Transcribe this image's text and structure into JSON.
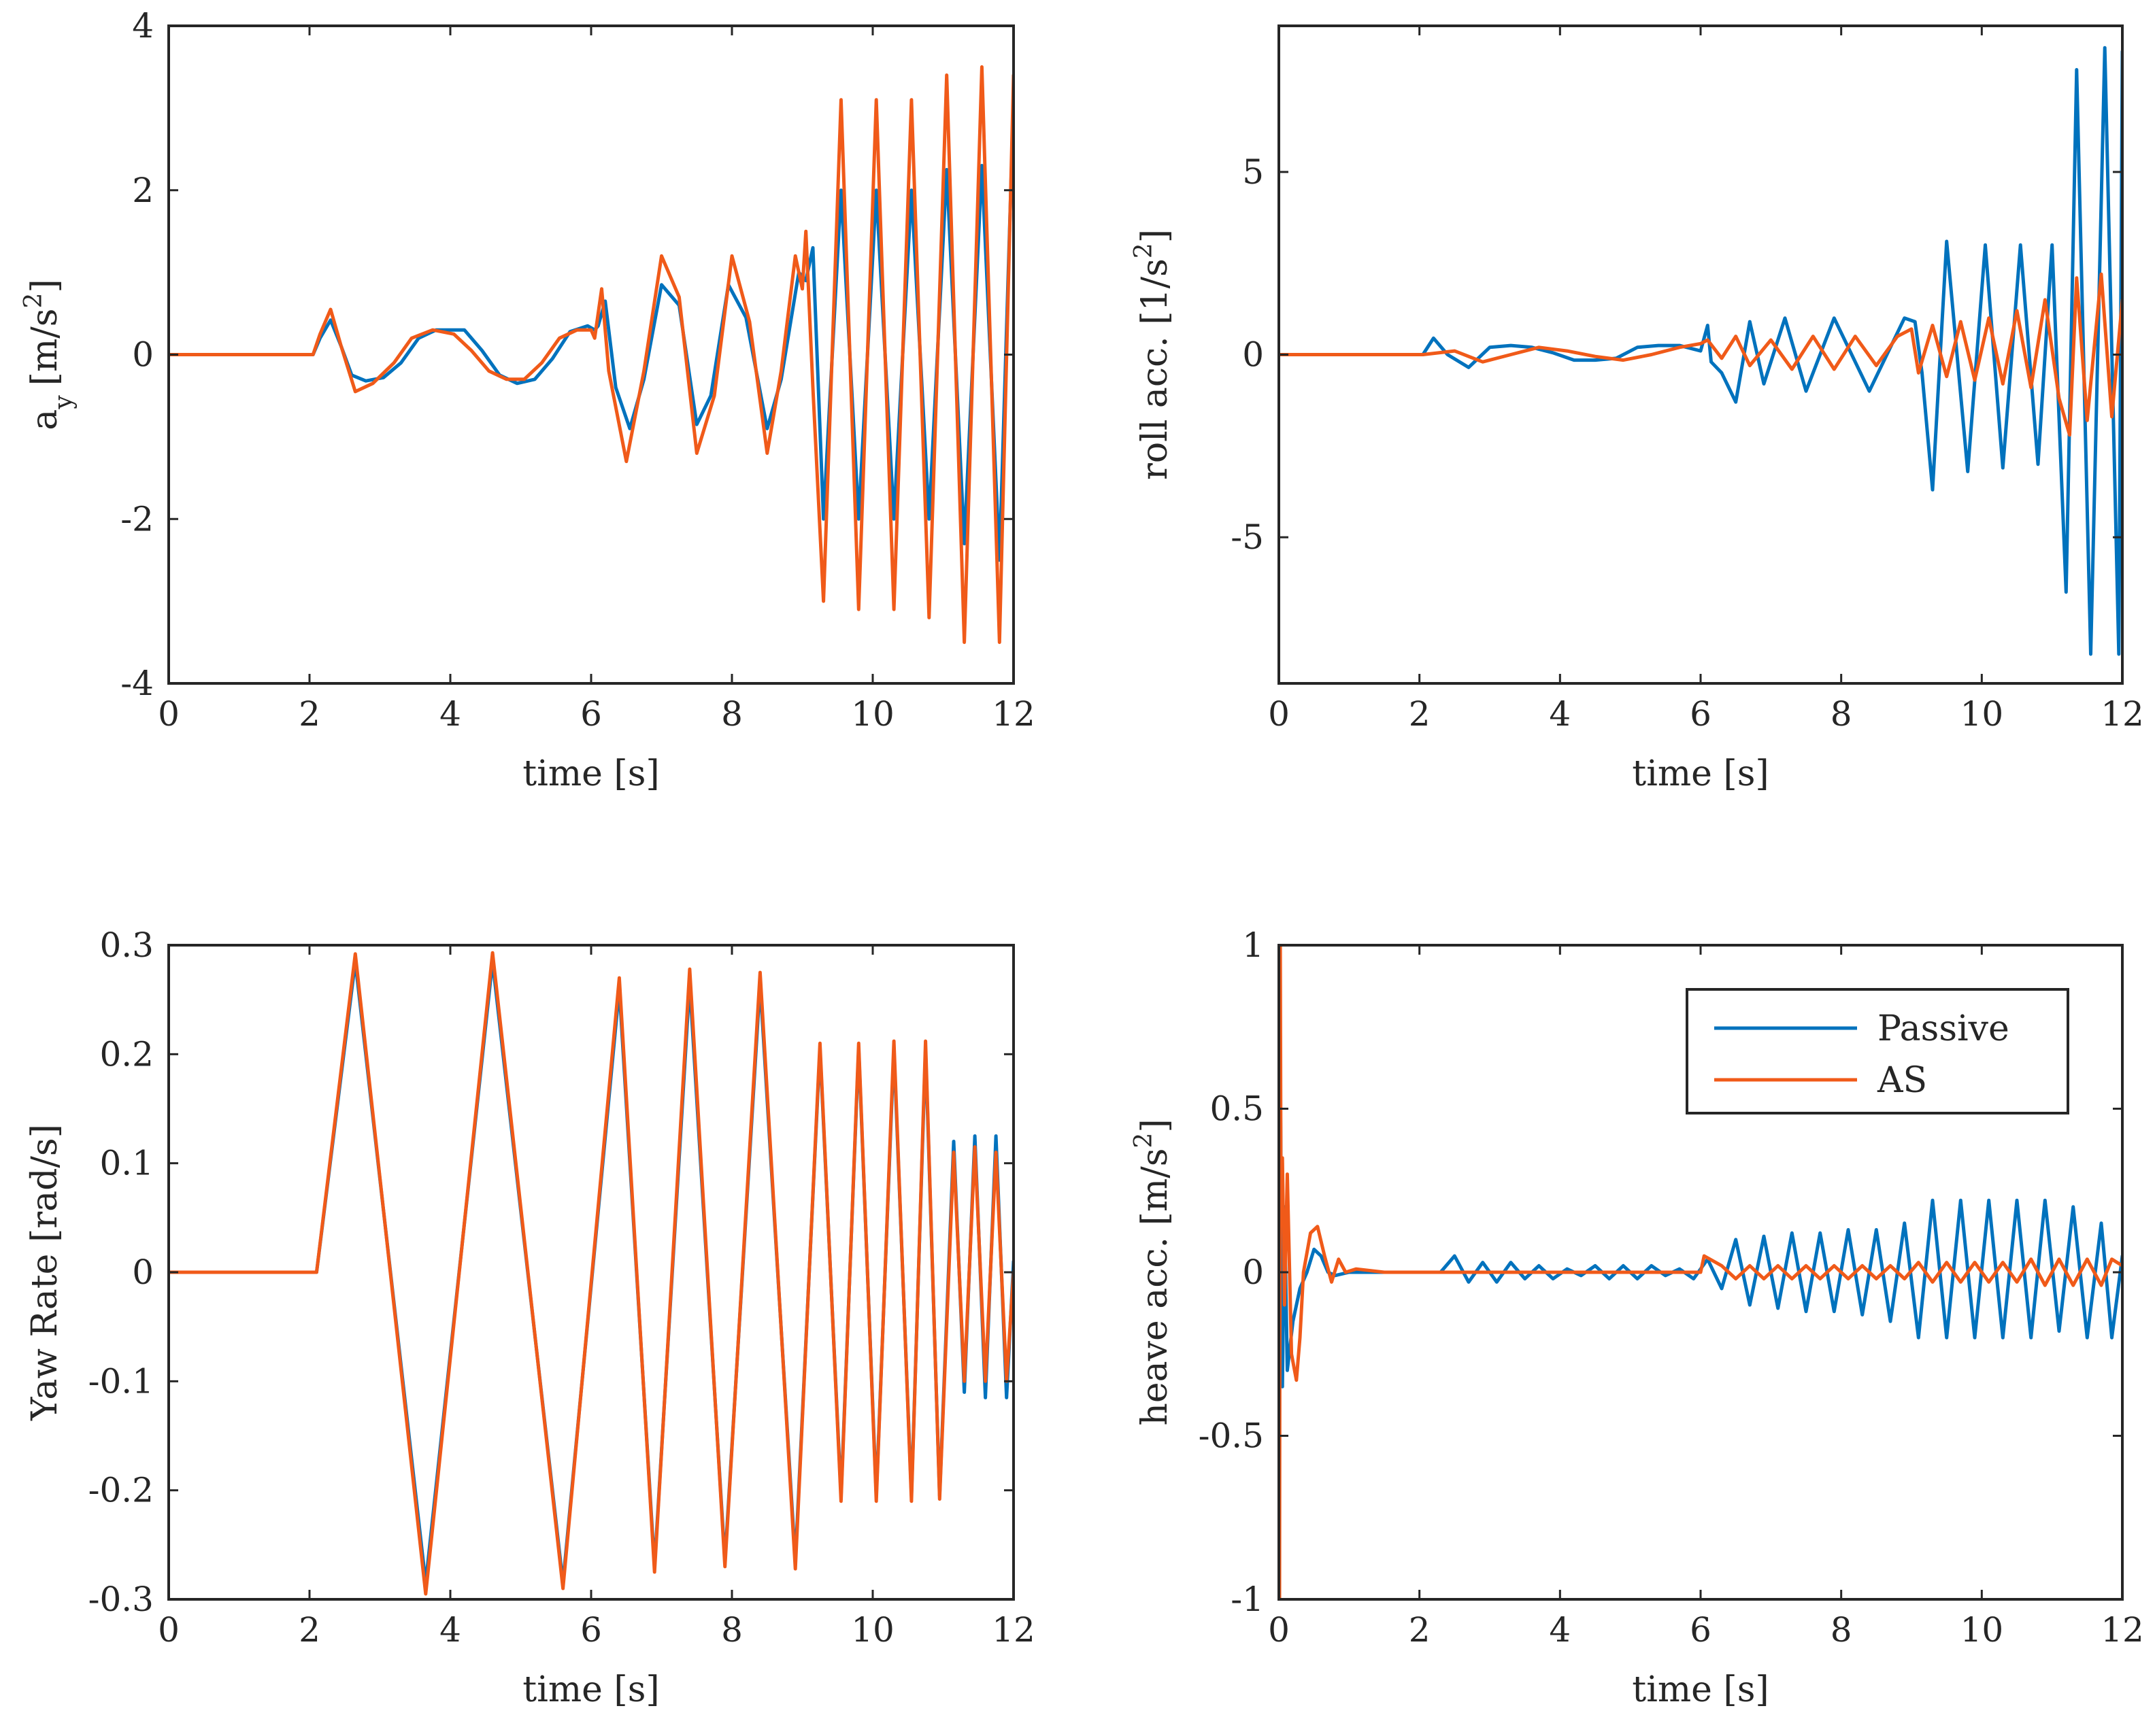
{
  "colors": {
    "passive": "#0072BD",
    "as": "#F05A19",
    "axis": "#262626"
  },
  "legend": {
    "placement": "top-right",
    "entries": [
      "Passive",
      "AS"
    ]
  },
  "chart_data": [
    {
      "type": "line",
      "xlabel": "time [s]",
      "ylabel": "a_y [m/s^2]",
      "ylabel_main": "a",
      "ylabel_sub": "y",
      "ylabel_tail": "[m/s",
      "ylabel_sup": "2",
      "ylabel_close": "]",
      "xlim": [
        0,
        12
      ],
      "ylim": [
        -4,
        4
      ],
      "xticks": [
        0,
        2,
        4,
        6,
        8,
        10,
        12
      ],
      "xtick_labels": [
        "0",
        "2",
        "4",
        "6",
        "8",
        "10",
        "12"
      ],
      "yticks": [
        -4,
        -2,
        0,
        2,
        4
      ],
      "ytick_labels": [
        "-4",
        "-2",
        "0",
        "2",
        "4"
      ],
      "series": [
        {
          "name": "Passive",
          "x": [
            0,
            2.05,
            2.15,
            2.3,
            2.45,
            2.6,
            2.8,
            3.05,
            3.3,
            3.55,
            3.8,
            4.05,
            4.2,
            4.45,
            4.7,
            4.95,
            5.2,
            5.45,
            5.7,
            5.95,
            6.05,
            6.1,
            6.2,
            6.35,
            6.55,
            6.75,
            7.0,
            7.25,
            7.5,
            7.7,
            7.95,
            8.2,
            8.5,
            8.7,
            8.95,
            9.05,
            9.15,
            9.3,
            9.55,
            9.8,
            10.05,
            10.3,
            10.55,
            10.8,
            11.05,
            11.3,
            11.55,
            11.8,
            12.0
          ],
          "y": [
            0,
            0,
            0.2,
            0.42,
            0.1,
            -0.25,
            -0.32,
            -0.28,
            -0.1,
            0.2,
            0.3,
            0.3,
            0.3,
            0.05,
            -0.25,
            -0.35,
            -0.3,
            -0.05,
            0.28,
            0.35,
            0.3,
            0.35,
            0.65,
            -0.4,
            -0.9,
            -0.3,
            0.85,
            0.6,
            -0.85,
            -0.5,
            0.85,
            0.45,
            -0.9,
            -0.3,
            1.0,
            0.9,
            1.3,
            -2.0,
            2.0,
            -2.0,
            2.0,
            -2.0,
            2.0,
            -2.0,
            2.25,
            -2.3,
            2.3,
            -2.5,
            3.1
          ]
        },
        {
          "name": "AS",
          "x": [
            0,
            2.05,
            2.15,
            2.3,
            2.45,
            2.65,
            2.9,
            3.2,
            3.45,
            3.75,
            4.05,
            4.3,
            4.55,
            4.8,
            5.05,
            5.3,
            5.55,
            5.8,
            6.0,
            6.05,
            6.15,
            6.25,
            6.5,
            6.75,
            7.0,
            7.25,
            7.5,
            7.75,
            8.0,
            8.25,
            8.5,
            8.7,
            8.9,
            9.0,
            9.05,
            9.15,
            9.3,
            9.55,
            9.8,
            10.05,
            10.3,
            10.55,
            10.8,
            11.05,
            11.3,
            11.55,
            11.8,
            12.0
          ],
          "y": [
            0,
            0,
            0.25,
            0.55,
            0.1,
            -0.45,
            -0.35,
            -0.1,
            0.2,
            0.3,
            0.25,
            0.05,
            -0.2,
            -0.3,
            -0.3,
            -0.1,
            0.2,
            0.3,
            0.3,
            0.2,
            0.8,
            -0.2,
            -1.3,
            -0.2,
            1.2,
            0.7,
            -1.2,
            -0.5,
            1.2,
            0.4,
            -1.2,
            -0.2,
            1.2,
            0.8,
            1.5,
            -0.4,
            -3.0,
            3.1,
            -3.1,
            3.1,
            -3.1,
            3.1,
            -3.2,
            3.4,
            -3.5,
            3.5,
            -3.5,
            3.4
          ]
        }
      ]
    },
    {
      "type": "line",
      "xlabel": "time [s]",
      "ylabel": "roll acc. [1/s^2]",
      "ylabel_main": "roll acc. [1/s",
      "ylabel_sup": "2",
      "ylabel_close": "]",
      "xlim": [
        0,
        12
      ],
      "ylim": [
        -9,
        9
      ],
      "xticks": [
        0,
        2,
        4,
        6,
        8,
        10,
        12
      ],
      "xtick_labels": [
        "0",
        "2",
        "4",
        "6",
        "8",
        "10",
        "12"
      ],
      "yticks": [
        -5,
        0,
        5
      ],
      "ytick_labels": [
        "-5",
        "0",
        "5"
      ],
      "series": [
        {
          "name": "Passive",
          "x": [
            0,
            2.05,
            2.2,
            2.4,
            2.7,
            3.0,
            3.3,
            3.6,
            3.9,
            4.2,
            4.5,
            4.8,
            5.1,
            5.4,
            5.7,
            6.0,
            6.1,
            6.15,
            6.3,
            6.5,
            6.7,
            6.9,
            7.2,
            7.5,
            7.9,
            8.4,
            8.9,
            9.05,
            9.15,
            9.3,
            9.5,
            9.8,
            10.05,
            10.3,
            10.55,
            10.8,
            11.0,
            11.2,
            11.35,
            11.55,
            11.75,
            11.95,
            12.0
          ],
          "y": [
            0,
            0,
            0.45,
            0.0,
            -0.35,
            0.2,
            0.25,
            0.2,
            0.05,
            -0.15,
            -0.15,
            -0.1,
            0.2,
            0.25,
            0.25,
            0.1,
            0.8,
            -0.2,
            -0.5,
            -1.3,
            0.9,
            -0.8,
            1.0,
            -1.0,
            1.0,
            -1.0,
            1.0,
            0.9,
            -0.5,
            -3.7,
            3.1,
            -3.2,
            3.0,
            -3.1,
            3.0,
            -3.0,
            3.0,
            -6.5,
            7.8,
            -8.2,
            8.4,
            -8.2,
            8.3
          ]
        },
        {
          "name": "AS",
          "x": [
            0,
            2.05,
            2.5,
            2.9,
            3.3,
            3.7,
            4.1,
            4.5,
            4.9,
            5.3,
            5.7,
            6.0,
            6.1,
            6.3,
            6.5,
            6.7,
            7.0,
            7.3,
            7.6,
            7.9,
            8.2,
            8.5,
            8.8,
            9.0,
            9.1,
            9.3,
            9.5,
            9.7,
            9.9,
            10.1,
            10.3,
            10.5,
            10.7,
            10.9,
            11.1,
            11.25,
            11.35,
            11.5,
            11.7,
            11.85,
            12.0
          ],
          "y": [
            0,
            0,
            0.1,
            -0.2,
            0.0,
            0.2,
            0.1,
            -0.05,
            -0.15,
            0.0,
            0.2,
            0.3,
            0.4,
            -0.1,
            0.5,
            -0.3,
            0.4,
            -0.4,
            0.5,
            -0.4,
            0.5,
            -0.3,
            0.5,
            0.7,
            -0.5,
            0.8,
            -0.6,
            0.9,
            -0.7,
            1.0,
            -0.8,
            1.2,
            -0.9,
            1.5,
            -1.2,
            -2.2,
            2.1,
            -1.8,
            2.2,
            -1.7,
            1.5
          ]
        }
      ]
    },
    {
      "type": "line",
      "xlabel": "time [s]",
      "ylabel": "Yaw Rate [rad/s]",
      "xlim": [
        0,
        12
      ],
      "ylim": [
        -0.3,
        0.3
      ],
      "xticks": [
        0,
        2,
        4,
        6,
        8,
        10,
        12
      ],
      "xtick_labels": [
        "0",
        "2",
        "4",
        "6",
        "8",
        "10",
        "12"
      ],
      "yticks": [
        -0.3,
        -0.2,
        -0.1,
        0,
        0.1,
        0.2,
        0.3
      ],
      "ytick_labels": [
        "-0.3",
        "-0.2",
        "-0.1",
        "0",
        "0.1",
        "0.2",
        "0.3"
      ],
      "series": [
        {
          "name": "Passive",
          "x": [
            0,
            2.1,
            2.65,
            3.65,
            4.6,
            5.6,
            6.4,
            6.9,
            7.4,
            7.9,
            8.4,
            8.9,
            9.25,
            9.55,
            9.8,
            10.05,
            10.3,
            10.55,
            10.75,
            10.95,
            11.15,
            11.3,
            11.45,
            11.6,
            11.75,
            11.9,
            12.0
          ],
          "y": [
            0,
            0,
            0.285,
            -0.285,
            0.285,
            -0.285,
            0.26,
            -0.27,
            0.265,
            -0.265,
            0.265,
            -0.265,
            0.205,
            -0.205,
            0.205,
            -0.205,
            0.205,
            -0.205,
            0.205,
            -0.205,
            0.12,
            -0.11,
            0.125,
            -0.115,
            0.125,
            -0.115,
            0.01
          ]
        },
        {
          "name": "AS",
          "x": [
            0,
            2.1,
            2.65,
            3.65,
            4.6,
            5.6,
            6.4,
            6.9,
            7.4,
            7.9,
            8.4,
            8.9,
            9.25,
            9.55,
            9.8,
            10.05,
            10.3,
            10.55,
            10.75,
            10.95,
            11.15,
            11.3,
            11.45,
            11.6,
            11.75,
            11.9,
            12.0
          ],
          "y": [
            0,
            0,
            0.292,
            -0.295,
            0.293,
            -0.29,
            0.27,
            -0.275,
            0.278,
            -0.27,
            0.275,
            -0.272,
            0.21,
            -0.21,
            0.21,
            -0.21,
            0.212,
            -0.21,
            0.212,
            -0.208,
            0.11,
            -0.1,
            0.115,
            -0.1,
            0.11,
            -0.1,
            0.0
          ]
        }
      ]
    },
    {
      "type": "line",
      "xlabel": "time [s]",
      "ylabel": "heave acc. [m/s^2]",
      "ylabel_main": "heave acc. [m/s",
      "ylabel_sup": "2",
      "ylabel_close": "]",
      "xlim": [
        0,
        12
      ],
      "ylim": [
        -1,
        1
      ],
      "xticks": [
        0,
        2,
        4,
        6,
        8,
        10,
        12
      ],
      "xtick_labels": [
        "0",
        "2",
        "4",
        "6",
        "8",
        "10",
        "12"
      ],
      "yticks": [
        -1,
        -0.5,
        0,
        0.5,
        1
      ],
      "ytick_labels": [
        "-1",
        "-0.5",
        "0",
        "0.5",
        "1"
      ],
      "series": [
        {
          "name": "Passive",
          "x": [
            0,
            0.02,
            0.05,
            0.08,
            0.12,
            0.2,
            0.3,
            0.4,
            0.5,
            0.6,
            0.7,
            0.8,
            1.0,
            1.5,
            2.0,
            2.3,
            2.5,
            2.7,
            2.9,
            3.1,
            3.3,
            3.5,
            3.7,
            3.9,
            4.1,
            4.3,
            4.5,
            4.7,
            4.9,
            5.1,
            5.3,
            5.5,
            5.7,
            5.9,
            6.1,
            6.3,
            6.5,
            6.7,
            6.9,
            7.1,
            7.3,
            7.5,
            7.7,
            7.9,
            8.1,
            8.3,
            8.5,
            8.7,
            8.9,
            9.1,
            9.3,
            9.5,
            9.7,
            9.9,
            10.1,
            10.3,
            10.5,
            10.7,
            10.9,
            11.1,
            11.3,
            11.5,
            11.7,
            11.85,
            12.0
          ],
          "y": [
            0,
            0.6,
            -0.35,
            0.2,
            -0.3,
            -0.15,
            -0.05,
            0.0,
            0.07,
            0.05,
            0.0,
            -0.01,
            0.0,
            0.0,
            0.0,
            0.0,
            0.05,
            -0.03,
            0.03,
            -0.03,
            0.03,
            -0.02,
            0.02,
            -0.02,
            0.01,
            -0.01,
            0.02,
            -0.02,
            0.02,
            -0.02,
            0.02,
            -0.01,
            0.01,
            -0.02,
            0.04,
            -0.05,
            0.1,
            -0.1,
            0.11,
            -0.11,
            0.12,
            -0.12,
            0.12,
            -0.12,
            0.13,
            -0.13,
            0.13,
            -0.15,
            0.15,
            -0.2,
            0.22,
            -0.2,
            0.22,
            -0.2,
            0.22,
            -0.2,
            0.22,
            -0.2,
            0.22,
            -0.18,
            0.2,
            -0.2,
            0.15,
            -0.2,
            0.05
          ]
        },
        {
          "name": "AS",
          "x": [
            0,
            0.01,
            0.02,
            0.03,
            0.05,
            0.08,
            0.12,
            0.18,
            0.25,
            0.3,
            0.35,
            0.45,
            0.55,
            0.65,
            0.75,
            0.85,
            0.95,
            1.1,
            1.5,
            2.0,
            3.0,
            4.0,
            5.0,
            6.0,
            6.05,
            6.3,
            6.5,
            6.7,
            6.9,
            7.1,
            7.3,
            7.5,
            7.7,
            7.9,
            8.1,
            8.3,
            8.5,
            8.7,
            8.9,
            9.1,
            9.3,
            9.5,
            9.7,
            9.9,
            10.1,
            10.3,
            10.5,
            10.7,
            10.9,
            11.1,
            11.3,
            11.5,
            11.7,
            11.85,
            12.0
          ],
          "y": [
            0,
            -1.0,
            1.0,
            0.2,
            0.35,
            -0.1,
            0.3,
            -0.25,
            -0.33,
            -0.2,
            0.0,
            0.12,
            0.14,
            0.05,
            -0.03,
            0.04,
            0.0,
            0.01,
            0.0,
            0.0,
            0.0,
            0.0,
            0.0,
            0.0,
            0.05,
            0.02,
            -0.02,
            0.02,
            -0.02,
            0.02,
            -0.02,
            0.02,
            -0.02,
            0.02,
            -0.02,
            0.02,
            -0.02,
            0.02,
            -0.02,
            0.03,
            -0.03,
            0.03,
            -0.03,
            0.03,
            -0.03,
            0.03,
            -0.03,
            0.04,
            -0.04,
            0.04,
            -0.04,
            0.04,
            -0.04,
            0.04,
            0.02
          ]
        }
      ]
    }
  ]
}
